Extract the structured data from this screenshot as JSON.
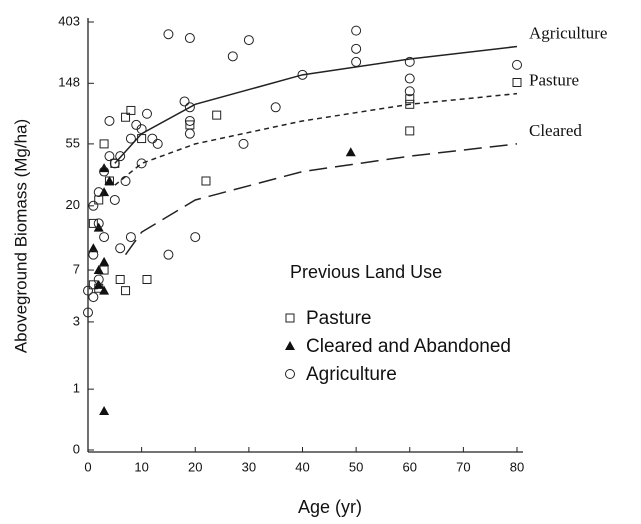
{
  "chart_data": {
    "type": "scatter",
    "xlabel": "Age (yr)",
    "ylabel": "Aboveground Biomass (Mg/ha)",
    "xlim": [
      0,
      80
    ],
    "xticks": [
      0,
      10,
      20,
      30,
      40,
      50,
      60,
      70,
      80
    ],
    "ylim": [
      0.37,
      403
    ],
    "yscale": "log",
    "yticks": [
      {
        "value": 0.37,
        "label": "0"
      },
      1,
      3,
      7,
      20,
      55,
      148,
      403
    ],
    "legend_title": "Previous Land Use",
    "series": [
      {
        "name": "Pasture",
        "marker": "square",
        "color": "#222",
        "x": [
          80,
          60,
          60,
          60,
          24,
          19,
          22,
          8,
          7,
          6,
          7,
          11,
          3,
          2,
          1,
          2,
          5,
          4,
          10,
          1,
          3
        ],
        "values": [
          150,
          115,
          105,
          68,
          88,
          75,
          30,
          95,
          85,
          6,
          5,
          6,
          55,
          22,
          5.5,
          5.2,
          40,
          30,
          60,
          15,
          7
        ]
      },
      {
        "name": "Cleared and Abandoned",
        "marker": "triangle",
        "color": "#111",
        "x": [
          49,
          3,
          3,
          2,
          1,
          2,
          3,
          3,
          2,
          3,
          4
        ],
        "values": [
          48,
          0.7,
          5,
          5.5,
          10,
          14,
          37,
          25,
          7,
          8,
          30
        ]
      },
      {
        "name": "Agriculture",
        "marker": "circle",
        "color": "#222",
        "x": [
          15,
          19,
          27,
          30,
          50,
          50,
          50,
          60,
          60,
          60,
          80,
          40,
          35,
          29,
          19,
          19,
          19,
          20,
          15,
          18,
          13,
          10,
          11,
          12,
          9,
          8,
          6,
          7,
          5,
          4,
          3,
          2,
          1,
          1,
          0,
          0,
          1,
          2,
          3,
          4,
          6,
          8,
          5,
          10,
          2
        ],
        "values": [
          330,
          310,
          230,
          300,
          350,
          260,
          210,
          210,
          160,
          130,
          200,
          170,
          100,
          55,
          100,
          80,
          65,
          12,
          9,
          110,
          55,
          70,
          90,
          60,
          75,
          60,
          45,
          30,
          40,
          80,
          35,
          25,
          20,
          9,
          3.5,
          5,
          4.5,
          15,
          12,
          45,
          10,
          12,
          22,
          40,
          6
        ]
      }
    ],
    "curves": [
      {
        "name": "Agriculture",
        "dash": "solid",
        "x": [
          5,
          10,
          20,
          40,
          60,
          80
        ],
        "values": [
          40,
          65,
          105,
          170,
          220,
          270
        ]
      },
      {
        "name": "Pasture",
        "dash": "short",
        "x": [
          5,
          10,
          20,
          40,
          60,
          80
        ],
        "values": [
          28,
          40,
          55,
          80,
          105,
          125
        ]
      },
      {
        "name": "Cleared",
        "dash": "long",
        "x": [
          7,
          10,
          20,
          40,
          60,
          80
        ],
        "values": [
          9,
          13,
          22,
          35,
          45,
          55
        ]
      }
    ]
  }
}
